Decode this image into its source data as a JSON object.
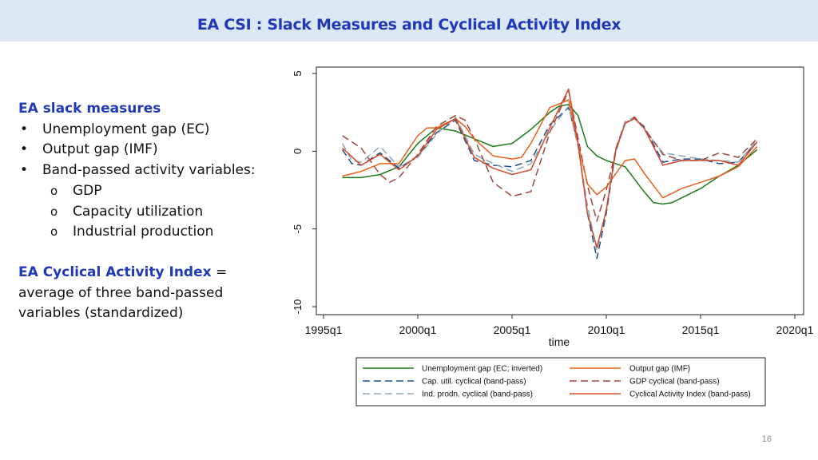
{
  "slide": {
    "title": "EA CSI : Slack Measures and Cyclical Activity Index",
    "page_number": "16"
  },
  "left": {
    "heading": "EA slack measures",
    "bullets": [
      "Unemployment gap (EC)",
      "Output gap (IMF)",
      "Band-passed activity variables:"
    ],
    "sub_bullets": [
      "GDP",
      "Capacity utilization",
      "Industrial production"
    ],
    "index_label": "EA Cyclical Activity Index",
    "index_eq": " =",
    "index_desc": "average of three band-passed variables (standardized)"
  },
  "chart_data": {
    "type": "line",
    "title": "",
    "xlabel": "time",
    "ylabel": "",
    "xlim": [
      1995,
      2020
    ],
    "ylim": [
      -10,
      5
    ],
    "x_ticks": [
      1995,
      2000,
      2005,
      2010,
      2015,
      2020
    ],
    "x_tick_labels": [
      "1995q1",
      "2000q1",
      "2005q1",
      "2010q1",
      "2015q1",
      "2020q1"
    ],
    "y_ticks": [
      5,
      0,
      -5,
      -10
    ],
    "y_tick_labels": [
      "5",
      "0",
      "-5",
      "-10"
    ],
    "legend_position": "bottom",
    "series": [
      {
        "name": "Unemployment gap (EC; inverted)",
        "color": "#1a7a1a",
        "dash": "solid",
        "x": [
          1996,
          1997,
          1998,
          1999,
          2000,
          2001,
          2002,
          2003,
          2004,
          2005,
          2006,
          2007,
          2007.5,
          2008,
          2008.5,
          2009,
          2009.5,
          2010,
          2010.5,
          2011,
          2011.5,
          2012,
          2012.5,
          2013,
          2013.5,
          2014,
          2015,
          2016,
          2017,
          2018
        ],
        "y": [
          -1.7,
          -1.7,
          -1.5,
          -1.0,
          0.5,
          1.5,
          1.3,
          0.8,
          0.3,
          0.5,
          1.4,
          2.5,
          2.9,
          3.0,
          2.3,
          0.3,
          -0.3,
          -0.6,
          -0.8,
          -1.0,
          -1.8,
          -2.6,
          -3.3,
          -3.4,
          -3.3,
          -3.0,
          -2.4,
          -1.6,
          -0.9,
          0.1
        ]
      },
      {
        "name": "Output gap (IMF)",
        "color": "#e8601c",
        "dash": "solid",
        "x": [
          1996,
          1997,
          1998,
          1999,
          2000,
          2000.5,
          2001,
          2002,
          2002.5,
          2003,
          2004,
          2005,
          2005.5,
          2006,
          2007,
          2008,
          2008.5,
          2009,
          2009.5,
          2010,
          2011,
          2011.5,
          2012,
          2012.5,
          2013,
          2013.5,
          2014,
          2015,
          2016,
          2017,
          2018
        ],
        "y": [
          -1.6,
          -1.3,
          -0.8,
          -0.8,
          1.0,
          1.5,
          1.5,
          2.1,
          1.6,
          0.8,
          -0.3,
          -0.5,
          -0.4,
          0.5,
          2.8,
          3.3,
          0.5,
          -2.1,
          -2.8,
          -2.3,
          -0.6,
          -0.5,
          -1.4,
          -2.2,
          -3.0,
          -2.7,
          -2.4,
          -2.0,
          -1.6,
          -1.0,
          0.3
        ]
      },
      {
        "name": "Cap. util. cyclical (band-pass)",
        "color": "#1f4e8c",
        "dash": "longdash",
        "x": [
          1996,
          1996.5,
          1997,
          1998,
          1999,
          2000,
          2001,
          2002,
          2003,
          2004,
          2005,
          2006,
          2007,
          2008,
          2008.5,
          2009,
          2009.5,
          2010,
          2010.5,
          2011,
          2011.5,
          2012,
          2013,
          2014,
          2015,
          2016,
          2017,
          2018
        ],
        "y": [
          0.1,
          -0.8,
          -0.9,
          -0.1,
          -1.1,
          -0.3,
          1.2,
          2.0,
          -0.6,
          -0.9,
          -1.0,
          -0.6,
          1.7,
          2.8,
          0.5,
          -4.0,
          -6.9,
          -4.0,
          0.0,
          1.8,
          2.1,
          1.6,
          -0.7,
          -0.5,
          -0.5,
          -0.8,
          -0.7,
          0.6
        ]
      },
      {
        "name": "GDP cyclical (band-pass)",
        "color": "#a0453c",
        "dash": "longdash",
        "x": [
          1996,
          1997,
          1998,
          1998.5,
          1999,
          2000,
          2001,
          2002,
          2002.5,
          2003,
          2004,
          2005,
          2006,
          2007,
          2008,
          2009,
          2009.5,
          2010,
          2010.5,
          2011,
          2011.5,
          2012,
          2013,
          2014,
          2015,
          2016,
          2017,
          2018
        ],
        "y": [
          1.0,
          0.2,
          -1.5,
          -2.0,
          -1.7,
          -0.2,
          1.6,
          2.3,
          2.0,
          0.8,
          -2.0,
          -2.9,
          -2.6,
          1.2,
          3.9,
          -2.2,
          -4.5,
          -2.5,
          0.0,
          1.8,
          2.2,
          1.5,
          -0.2,
          -0.6,
          -0.6,
          -0.1,
          -0.4,
          0.8
        ]
      },
      {
        "name": "Ind. prodn. cyclical (band-pass)",
        "color": "#8aa6b3",
        "dash": "longdash",
        "x": [
          1996,
          1996.5,
          1997,
          1998,
          1999,
          2000,
          2001,
          2002,
          2003,
          2004,
          2005,
          2006,
          2007,
          2008,
          2008.5,
          2009,
          2009.5,
          2010,
          2010.5,
          2011,
          2011.5,
          2012,
          2013,
          2014,
          2015,
          2016,
          2017,
          2018
        ],
        "y": [
          0.5,
          -0.6,
          -0.7,
          0.3,
          -1.0,
          -0.4,
          1.1,
          2.2,
          -0.2,
          -0.8,
          -1.3,
          -0.8,
          1.3,
          2.9,
          0.3,
          -3.5,
          -6.4,
          -3.7,
          0.2,
          1.9,
          2.2,
          1.4,
          -0.1,
          -0.3,
          -0.5,
          -0.6,
          -0.7,
          0.7
        ]
      },
      {
        "name": "Cyclical Activity Index (band-pass)",
        "color": "#d24a2a",
        "dash": "solid",
        "x": [
          1996,
          1997,
          1998,
          1999,
          2000,
          2001,
          2002,
          2003,
          2004,
          2005,
          2006,
          2007,
          2008,
          2008.5,
          2009,
          2009.5,
          2010,
          2010.5,
          2011,
          2011.5,
          2012,
          2013,
          2014,
          2015,
          2016,
          2017,
          2018
        ],
        "y": [
          0.2,
          -0.9,
          -0.2,
          -1.2,
          -0.3,
          1.4,
          2.1,
          -0.4,
          -1.1,
          -1.5,
          -1.2,
          1.5,
          4.0,
          0.5,
          -4.0,
          -6.2,
          -3.8,
          0.1,
          1.8,
          2.1,
          1.5,
          -0.9,
          -0.6,
          -0.6,
          -0.6,
          -0.9,
          0.6
        ]
      }
    ]
  }
}
